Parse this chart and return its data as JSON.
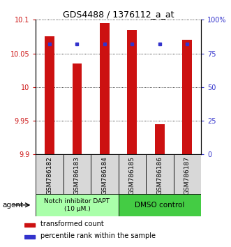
{
  "title": "GDS4488 / 1376112_a_at",
  "samples": [
    "GSM786182",
    "GSM786183",
    "GSM786184",
    "GSM786185",
    "GSM786186",
    "GSM786187"
  ],
  "red_values": [
    10.075,
    10.035,
    10.095,
    10.085,
    9.945,
    10.07
  ],
  "blue_values": [
    82,
    82,
    82,
    82,
    82,
    82
  ],
  "ymin": 9.9,
  "ymax": 10.1,
  "yticks": [
    9.9,
    9.95,
    10.0,
    10.05,
    10.1
  ],
  "ytick_labels": [
    "9.9",
    "9.95",
    "10",
    "10.05",
    "10.1"
  ],
  "right_yticks": [
    0,
    25,
    50,
    75,
    100
  ],
  "right_ytick_labels": [
    "0",
    "25",
    "50",
    "75",
    "100%"
  ],
  "red_color": "#cc1111",
  "blue_color": "#3333cc",
  "bar_width": 0.35,
  "group1_label": "Notch inhibitor DAPT\n(10 μM.)",
  "group2_label": "DMSO control",
  "group1_color": "#aaffaa",
  "group2_color": "#44cc44",
  "agent_label": "agent",
  "legend_red": "transformed count",
  "legend_blue": "percentile rank within the sample",
  "plot_bg": "#ffffff",
  "axis_color_left": "#cc1111",
  "axis_color_right": "#3333cc",
  "title_fontsize": 9,
  "tick_fontsize": 7,
  "bar_label_fontsize": 6.5,
  "legend_fontsize": 7
}
